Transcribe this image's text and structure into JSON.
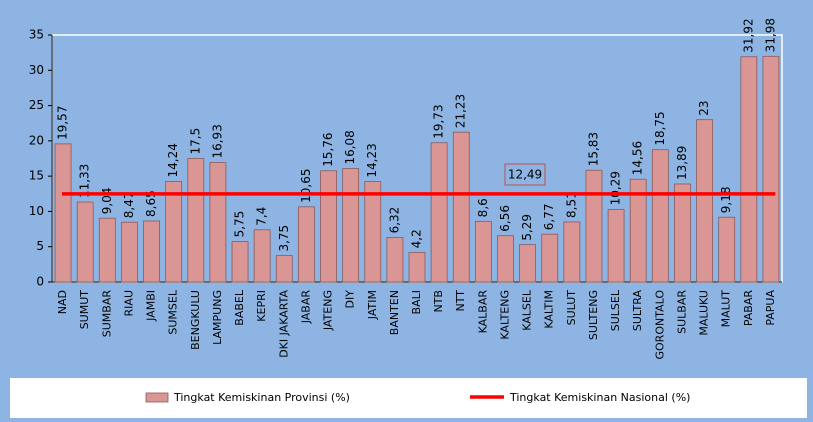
{
  "chart_data": {
    "type": "bar",
    "categories": [
      "NAD",
      "SUMUT",
      "SUMBAR",
      "RIAU",
      "JAMBI",
      "SUMSEL",
      "BENGKULU",
      "LAMPUNG",
      "BABEL",
      "KEPRI",
      "DKI JAKARTA",
      "JABAR",
      "JATENG",
      "DIY",
      "JATIM",
      "BANTEN",
      "BALI",
      "NTB",
      "NTT",
      "KALBAR",
      "KALTENG",
      "KALSEL",
      "KALTIM",
      "SULUT",
      "SULTENG",
      "SULSEL",
      "SULTRA",
      "GORONTALO",
      "SULBAR",
      "MALUKU",
      "MALUT",
      "PABAR",
      "PAPUA"
    ],
    "series": [
      {
        "name": "Tingkat Kemiskinan Provinsi (%)",
        "color": "#d99694",
        "values": [
          19.57,
          11.33,
          9.04,
          8.47,
          8.65,
          14.24,
          17.5,
          16.93,
          5.75,
          7.4,
          3.75,
          10.65,
          15.76,
          16.08,
          14.23,
          6.32,
          4.2,
          19.73,
          21.23,
          8.6,
          6.56,
          5.29,
          6.77,
          8.51,
          15.83,
          10.29,
          14.56,
          18.75,
          13.89,
          23,
          9.18,
          31.92,
          31.98
        ],
        "value_labels": [
          "19,57",
          "11,33",
          "9,04",
          "8,47",
          "8,65",
          "14,24",
          "17,5",
          "16,93",
          "5,75",
          "7,4",
          "3,75",
          "10,65",
          "15,76",
          "16,08",
          "14,23",
          "6,32",
          "4,2",
          "19,73",
          "21,23",
          "8,6",
          "6,56",
          "5,29",
          "6,77",
          "8,51",
          "15,83",
          "10,29",
          "14,56",
          "18,75",
          "13,89",
          "23",
          "9,18",
          "31,92",
          "31,98"
        ]
      }
    ],
    "reference_line": {
      "name": "Tingkat Kemiskinan Nasional (%)",
      "color": "#ff0000",
      "value": 12.49,
      "value_label": "12,49"
    },
    "ylim": [
      0,
      35
    ],
    "yticks": [
      0,
      5,
      10,
      15,
      20,
      25,
      30,
      35
    ],
    "grid": false
  }
}
